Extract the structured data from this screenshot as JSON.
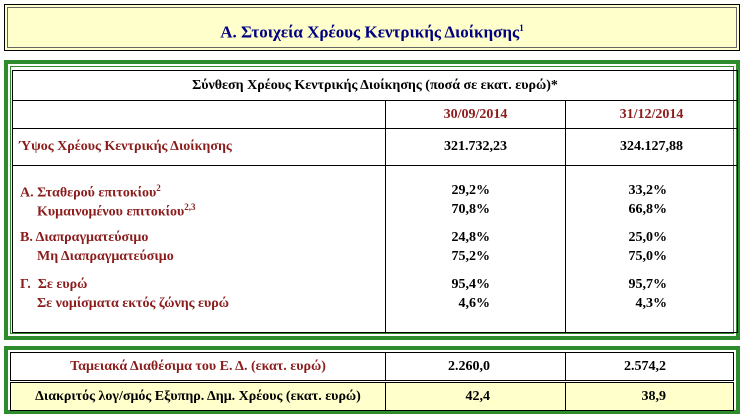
{
  "header": {
    "title": "Α. Στοιχεία Χρέους Κεντρικής Διοίκησης",
    "note": "1"
  },
  "table": {
    "title": "Σύνθεση Χρέους Κεντρικής Διοίκησης (ποσά σε εκατ. ευρώ)*",
    "columns": [
      "30/09/2014",
      "31/12/2014"
    ],
    "total": {
      "label": "Ύψος Χρέους Κεντρικής Διοίκησης",
      "values": [
        "321.732,23",
        "324.127,88"
      ]
    },
    "groups": [
      {
        "rows": [
          {
            "label": "Α. Σταθερού επιτοκίου",
            "note": "2",
            "values": [
              "29,2%",
              "33,2%"
            ]
          },
          {
            "label": "Κυμαινομένου επιτοκίου",
            "note": "2,3",
            "values": [
              "70,8%",
              "66,8%"
            ]
          }
        ]
      },
      {
        "rows": [
          {
            "label": "Β. Διαπραγματεύσιμο",
            "values": [
              "24,8%",
              "25,0%"
            ]
          },
          {
            "label": "Μη Διαπραγματεύσιμο",
            "values": [
              "75,2%",
              "75,0%"
            ]
          }
        ]
      },
      {
        "rows": [
          {
            "label": "Γ.  Σε ευρώ",
            "values": [
              "95,4%",
              "95,7%"
            ]
          },
          {
            "label": "Σε νομίσματα εκτός ζώνης ευρώ",
            "values": [
              "4,6%",
              "4,3%"
            ]
          }
        ]
      }
    ]
  },
  "bottom": {
    "rows": [
      {
        "label": "Ταμειακά Διαθέσιμα του Ε. Δ. (εκατ. ευρώ)",
        "values": [
          "2.260,0",
          "2.574,2"
        ]
      },
      {
        "label": "Διακριτός λογ/σμός Εξυπηρ. Δημ. Χρέους (εκατ. ευρώ)",
        "values": [
          "42,4",
          "38,9"
        ]
      }
    ]
  }
}
